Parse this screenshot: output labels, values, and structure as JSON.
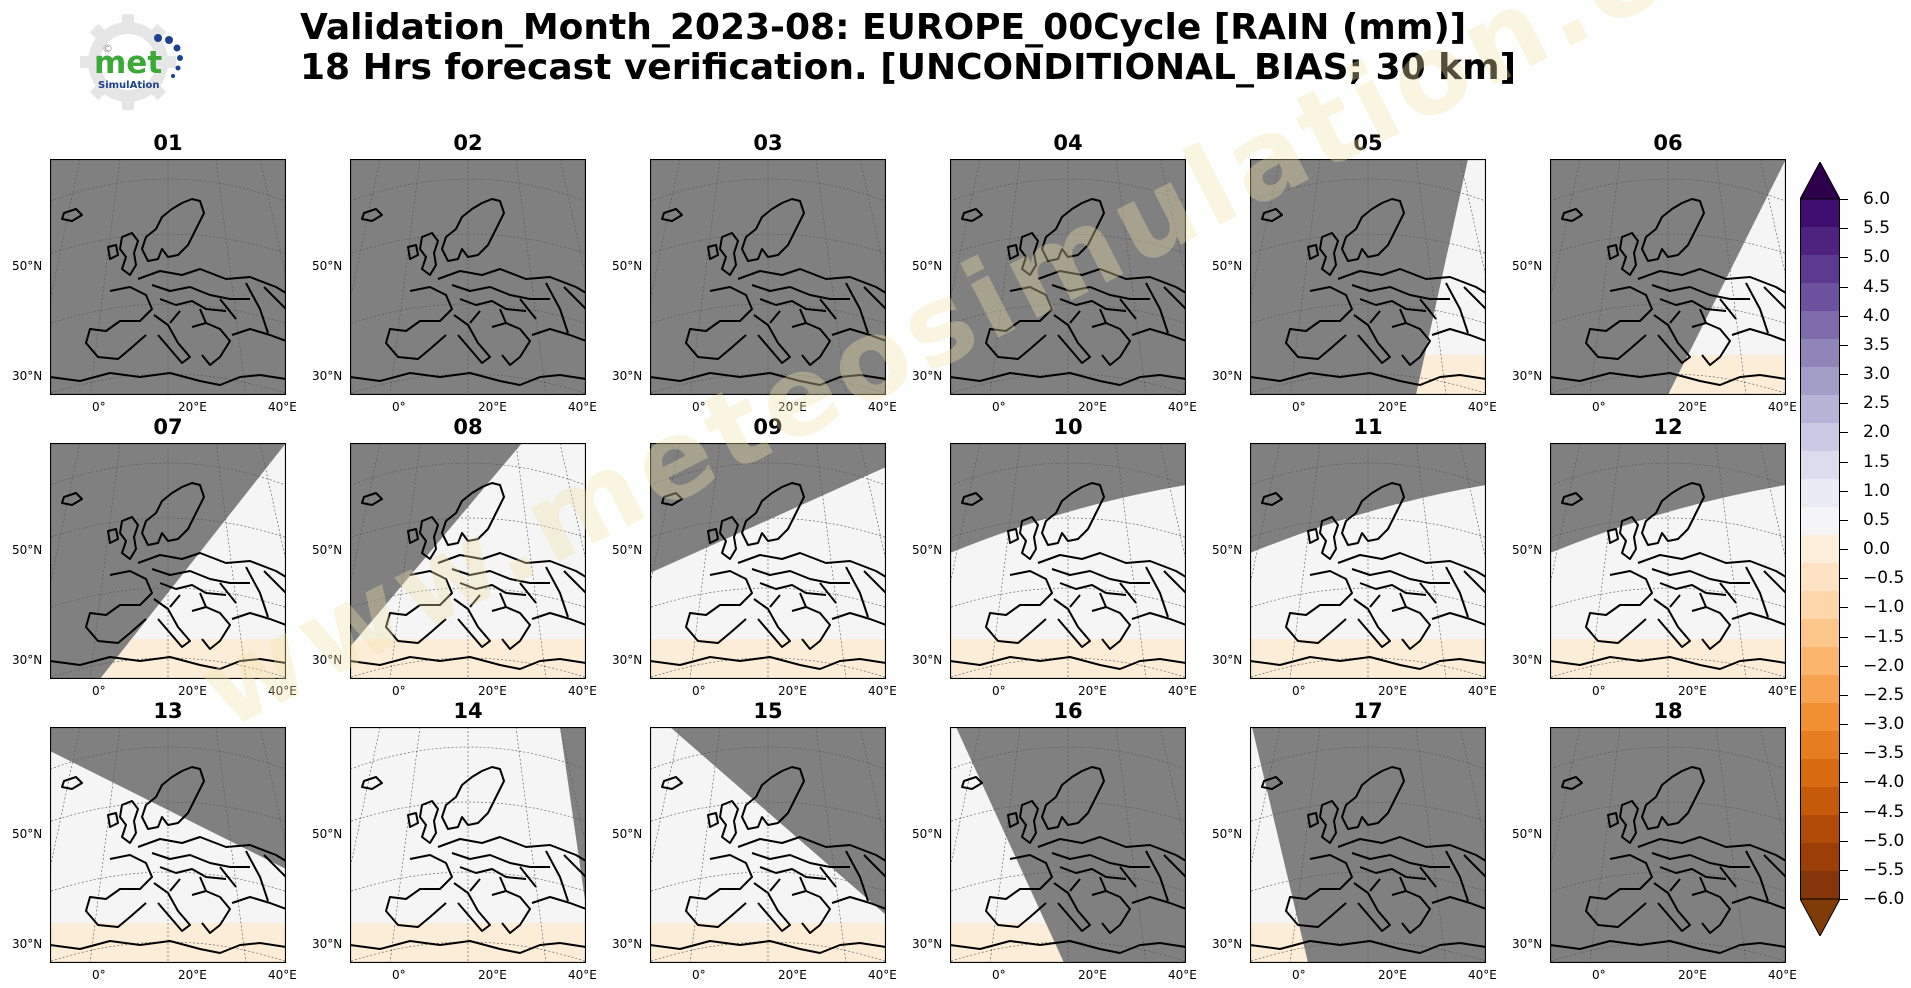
{
  "title": {
    "line1": "Validation_Month_2023-08: EUROPE_00Cycle [RAIN (mm)]",
    "line2": "18 Hrs forecast verification. [UNCONDITIONAL_BIAS; 30 km]"
  },
  "logo": {
    "text_main": "met",
    "text_sub": "SimulAtion"
  },
  "watermark": "www.meteosimulation.com",
  "axes": {
    "lat_labels": [
      "50°N",
      "30°N"
    ],
    "lon_labels": [
      "0°",
      "20°E",
      "40°E"
    ]
  },
  "panels": [
    {
      "title": "01",
      "coverage": "none"
    },
    {
      "title": "02",
      "coverage": "none"
    },
    {
      "title": "03",
      "coverage": "none"
    },
    {
      "title": "04",
      "coverage": "none"
    },
    {
      "title": "05",
      "coverage": "east-edge"
    },
    {
      "title": "06",
      "coverage": "east-third"
    },
    {
      "title": "07",
      "coverage": "southeast-half"
    },
    {
      "title": "08",
      "coverage": "southern-majority"
    },
    {
      "title": "09",
      "coverage": "south-two-thirds"
    },
    {
      "title": "10",
      "coverage": "below-north-arc"
    },
    {
      "title": "11",
      "coverage": "below-north-arc"
    },
    {
      "title": "12",
      "coverage": "below-north-arc"
    },
    {
      "title": "13",
      "coverage": "southwest-majority"
    },
    {
      "title": "14",
      "coverage": "southwest-half"
    },
    {
      "title": "15",
      "coverage": "west-third"
    },
    {
      "title": "16",
      "coverage": "west-edge"
    },
    {
      "title": "17",
      "coverage": "west-sliver"
    },
    {
      "title": "18",
      "coverage": "none"
    }
  ],
  "colorbar": {
    "labels": [
      "6.0",
      "5.5",
      "5.0",
      "4.5",
      "4.0",
      "3.5",
      "3.0",
      "2.5",
      "2.0",
      "1.5",
      "1.0",
      "0.5",
      "0.0",
      "−0.5",
      "−1.0",
      "−1.5",
      "−2.0",
      "−2.5",
      "−3.0",
      "−3.5",
      "−4.0",
      "−4.5",
      "−5.0",
      "−5.5",
      "−6.0"
    ],
    "colors_positive_top_down": [
      "#3f0d6e",
      "#4d237f",
      "#5c3a90",
      "#6c529e",
      "#7d6bab",
      "#8f85b9",
      "#a29ec8",
      "#b7b5d7",
      "#cbcae5",
      "#dcdcee",
      "#ebebf5",
      "#f5f5f7"
    ],
    "colors_negative_top_down": [
      "#fdeddb",
      "#fde2c4",
      "#fdd6aa",
      "#fdc78c",
      "#fbb56d",
      "#f8a34f",
      "#f29034",
      "#e67d1f",
      "#d86b10",
      "#c65a0b",
      "#b34b08",
      "#9b3f07",
      "#84350a"
    ],
    "extend_top_color": "#2d004b",
    "extend_bottom_color": "#7f3b08",
    "no_data_color": "#808080",
    "near_zero_color": "#f5f5f5",
    "slight_negative_color": "#fdebd3"
  }
}
